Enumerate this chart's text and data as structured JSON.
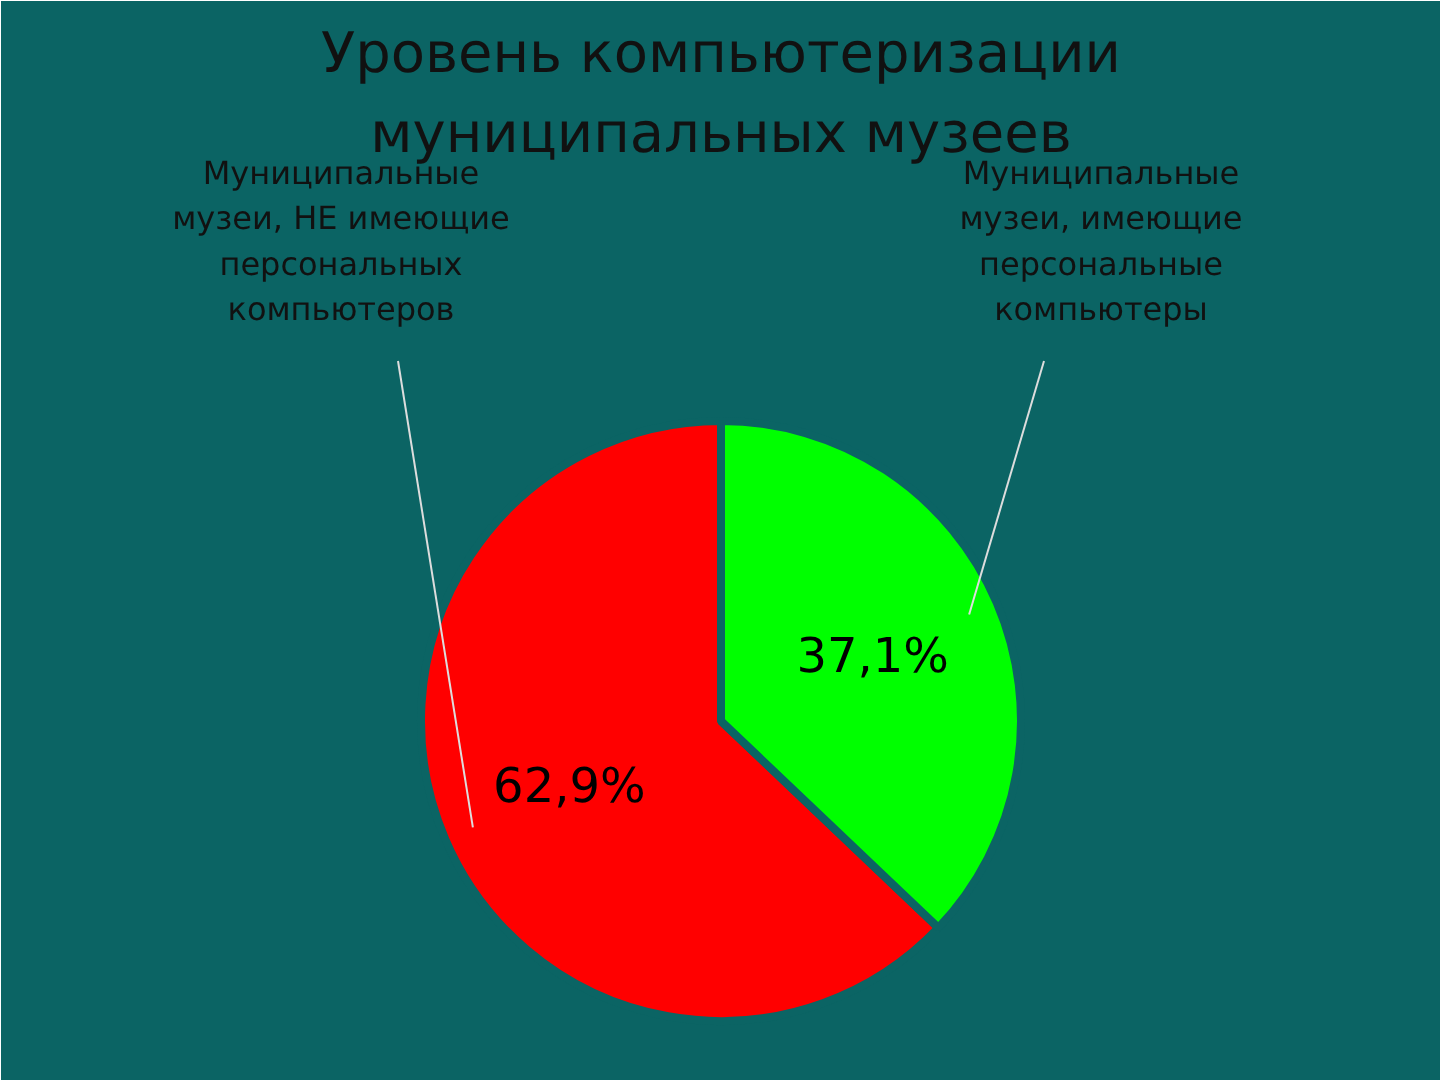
{
  "chart_data": {
    "type": "pie",
    "title": "Уровень компьютеризации\nмуниципальных музеев",
    "categories": [
      "Муниципальные\nмузеи, НЕ имеющие\nперсональных\nкомпьютеров",
      "Муниципальные\nмузеи, имеющие\nперсональные\nкомпьютеры"
    ],
    "values": [
      62.9,
      37.1
    ],
    "colors": [
      "#ff0000",
      "#00ff00"
    ],
    "value_labels": [
      "62,9%",
      "37,1%"
    ]
  }
}
